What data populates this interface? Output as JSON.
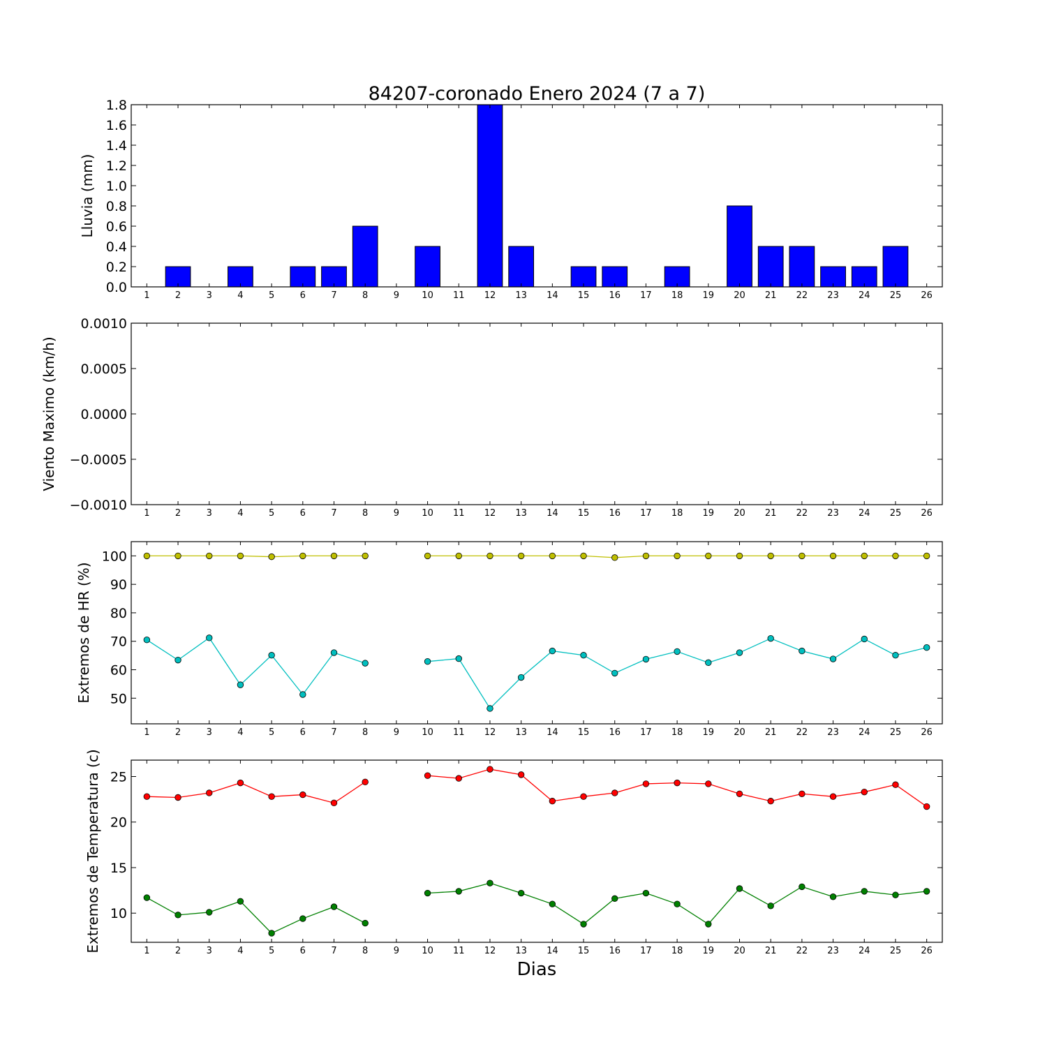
{
  "chart_data": [
    {
      "type": "bar",
      "title": "84207-coronado Enero 2024  (7 a 7)",
      "ylabel": "Lluvia (mm)",
      "xlabel": "",
      "categories": [
        1,
        2,
        3,
        4,
        5,
        6,
        7,
        8,
        9,
        10,
        11,
        12,
        13,
        14,
        15,
        16,
        17,
        18,
        19,
        20,
        21,
        22,
        23,
        24,
        25,
        26
      ],
      "values": [
        0,
        0.2,
        0,
        0.2,
        0,
        0.2,
        0.2,
        0.6,
        0,
        0.4,
        0,
        1.8,
        0.4,
        0,
        0.2,
        0.2,
        0,
        0.2,
        0,
        0.8,
        0.4,
        0.4,
        0.2,
        0.2,
        0.4,
        0
      ],
      "xlim": [
        0.5,
        26.5
      ],
      "ylim": [
        0,
        1.8
      ],
      "yticks": [
        0.0,
        0.2,
        0.4,
        0.6,
        0.8,
        1.0,
        1.2,
        1.4,
        1.6,
        1.8
      ],
      "ytick_labels": [
        "0.0",
        "0.2",
        "0.4",
        "0.6",
        "0.8",
        "1.0",
        "1.2",
        "1.4",
        "1.6",
        "1.8"
      ],
      "color": "#0000ff"
    },
    {
      "type": "line",
      "title": "",
      "ylabel": "Viento Maximo (km/h)",
      "xlabel": "",
      "x": [
        1,
        2,
        3,
        4,
        5,
        6,
        7,
        8,
        9,
        10,
        11,
        12,
        13,
        14,
        15,
        16,
        17,
        18,
        19,
        20,
        21,
        22,
        23,
        24,
        25,
        26
      ],
      "series": [],
      "xlim": [
        0.5,
        26.5
      ],
      "ylim": [
        -0.001,
        0.001
      ],
      "yticks": [
        -0.001,
        -0.0005,
        0.0,
        0.0005,
        0.001
      ],
      "ytick_labels": [
        "−0.0010",
        "−0.0005",
        "0.0000",
        "0.0005",
        "0.0010"
      ]
    },
    {
      "type": "line",
      "title": "",
      "ylabel": "Extremos de HR (%)",
      "xlabel": "",
      "x": [
        1,
        2,
        3,
        4,
        5,
        6,
        7,
        8,
        9,
        10,
        11,
        12,
        13,
        14,
        15,
        16,
        17,
        18,
        19,
        20,
        21,
        22,
        23,
        24,
        25,
        26
      ],
      "series": [
        {
          "color": "#bfbf00",
          "values": [
            100,
            100,
            100,
            100,
            99.7,
            100,
            100,
            100,
            null,
            100,
            100,
            100,
            100,
            100,
            100,
            99.4,
            100,
            100,
            100,
            100,
            100,
            100,
            100,
            100,
            100,
            100
          ]
        },
        {
          "color": "#00bfbf",
          "values": [
            70.5,
            63.4,
            71.2,
            54.7,
            65.1,
            51.3,
            66.0,
            62.3,
            null,
            62.9,
            63.9,
            46.4,
            57.3,
            66.6,
            65.1,
            58.8,
            63.7,
            66.4,
            62.5,
            66.0,
            71.0,
            66.6,
            63.8,
            70.8,
            65.1,
            67.8
          ]
        }
      ],
      "xlim": [
        0.5,
        26.5
      ],
      "ylim": [
        41,
        105
      ],
      "yticks": [
        50,
        60,
        70,
        80,
        90,
        100
      ],
      "ytick_labels": [
        "50",
        "60",
        "70",
        "80",
        "90",
        "100"
      ]
    },
    {
      "type": "line",
      "title": "",
      "ylabel": "Extremos de Temperatura (c)",
      "xlabel": "Dias",
      "x": [
        1,
        2,
        3,
        4,
        5,
        6,
        7,
        8,
        9,
        10,
        11,
        12,
        13,
        14,
        15,
        16,
        17,
        18,
        19,
        20,
        21,
        22,
        23,
        24,
        25,
        26
      ],
      "series": [
        {
          "color": "#ff0000",
          "values": [
            22.8,
            22.7,
            23.2,
            24.3,
            22.8,
            23.0,
            22.1,
            24.4,
            null,
            25.1,
            24.8,
            25.8,
            25.2,
            22.3,
            22.8,
            23.2,
            24.2,
            24.3,
            24.2,
            23.1,
            22.3,
            23.1,
            22.8,
            23.3,
            24.1,
            21.7
          ]
        },
        {
          "color": "#008000",
          "values": [
            11.7,
            9.8,
            10.1,
            11.3,
            7.8,
            9.4,
            10.7,
            8.9,
            null,
            12.2,
            12.4,
            13.3,
            12.2,
            11.0,
            8.8,
            11.6,
            12.2,
            11.0,
            8.8,
            12.7,
            10.8,
            12.9,
            11.8,
            12.4,
            12.0,
            12.4
          ]
        }
      ],
      "xlim": [
        0.5,
        26.5
      ],
      "ylim": [
        6.8,
        26.8
      ],
      "yticks": [
        10,
        15,
        20,
        25
      ],
      "ytick_labels": [
        "10",
        "15",
        "20",
        "25"
      ]
    }
  ]
}
